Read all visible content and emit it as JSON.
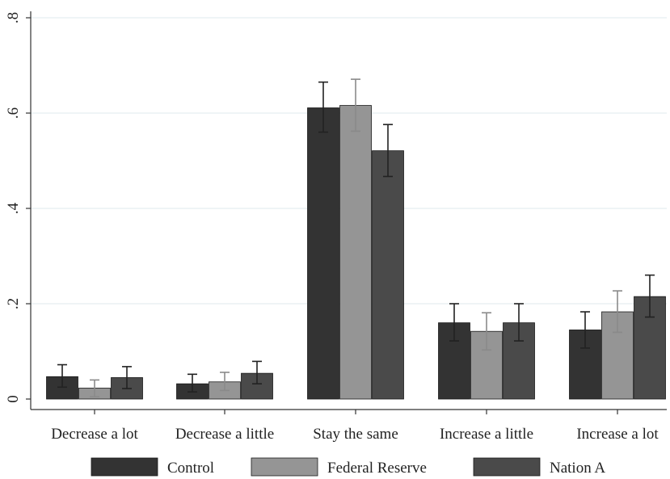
{
  "chart_data": {
    "type": "bar",
    "categories": [
      "Decrease a lot",
      "Decrease a little",
      "Stay the same",
      "Increase a little",
      "Increase a lot"
    ],
    "series": [
      {
        "name": "Control",
        "color": "#333333",
        "values": [
          0.047,
          0.032,
          0.611,
          0.16,
          0.145
        ],
        "ci_low": [
          0.025,
          0.015,
          0.56,
          0.122,
          0.107
        ],
        "ci_high": [
          0.072,
          0.052,
          0.665,
          0.2,
          0.183
        ]
      },
      {
        "name": "Federal Reserve",
        "color": "#959595",
        "values": [
          0.023,
          0.036,
          0.616,
          0.142,
          0.183
        ],
        "ci_low": [
          0.005,
          0.018,
          0.562,
          0.103,
          0.14
        ],
        "ci_high": [
          0.04,
          0.056,
          0.671,
          0.181,
          0.227
        ]
      },
      {
        "name": "Nation A",
        "color": "#4a4a4a",
        "values": [
          0.045,
          0.054,
          0.521,
          0.16,
          0.215
        ],
        "ci_low": [
          0.022,
          0.032,
          0.467,
          0.122,
          0.172
        ],
        "ci_high": [
          0.068,
          0.079,
          0.576,
          0.2,
          0.26
        ]
      }
    ],
    "y_ticks": [
      0,
      0.2,
      0.4,
      0.6,
      0.8
    ],
    "y_tick_labels": [
      "0",
      ".2",
      ".4",
      ".6",
      ".8"
    ],
    "ylim": [
      0,
      0.82
    ],
    "grid": true,
    "legend_position": "bottom",
    "title": "",
    "xlabel": "",
    "ylabel": ""
  }
}
